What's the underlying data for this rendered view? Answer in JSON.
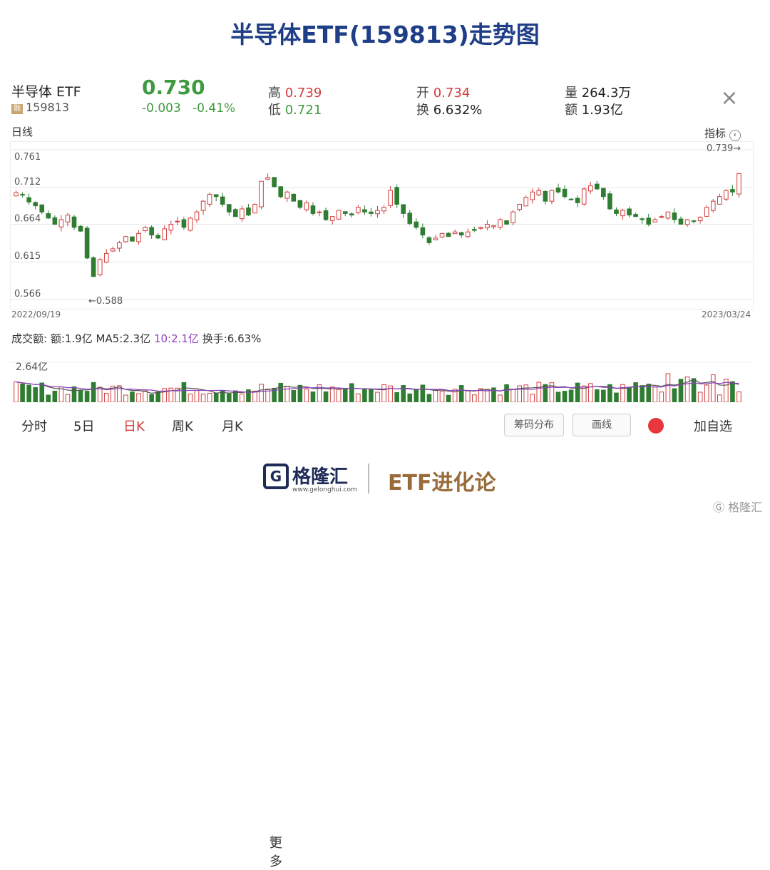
{
  "title": "半导体ETF(159813)走势图",
  "quote": {
    "name": "半导体 ETF",
    "code": "159813",
    "code_badge": "融",
    "price": "0.730",
    "change": "-0.003",
    "change_pct": "-0.41%",
    "high_label": "高",
    "high": "0.739",
    "low_label": "低",
    "low": "0.721",
    "open_label": "开",
    "open": "0.734",
    "turnover_label": "换",
    "turnover": "6.632%",
    "volume_label": "量",
    "volume": "264.3万",
    "amount_label": "额",
    "amount": "1.93亿"
  },
  "chart": {
    "period_label": "日线",
    "indicator_label": "指标",
    "start_date": "2022/09/19",
    "end_date": "2023/03/24",
    "max_annotation": "0.739→",
    "min_annotation": "←0.588"
  },
  "volume_panel": {
    "summary_prefix": "成交额: 额:1.9亿 MA5:2.3亿 ",
    "ma10": "10:2.1亿",
    "turnover": " 换手:6.63%",
    "axis_label": "2.64亿"
  },
  "tabs": [
    "分时",
    "5日",
    "日K",
    "周K",
    "月K",
    "更多"
  ],
  "active_tab": "日K",
  "buttons": {
    "chips": "筹码分布",
    "draw": "画线",
    "add": "加自选"
  },
  "footer": {
    "brand": "格隆汇",
    "brand_url": "www.gelonghui.com",
    "column": "ETF进化论",
    "watermark": "格隆汇"
  },
  "colors": {
    "up": "#d23c3c",
    "down": "#2f7d32",
    "title": "#1e3f87"
  },
  "chart_data": {
    "type": "candlestick",
    "ylim": [
      0.566,
      0.761
    ],
    "y_ticks": [
      "0.761",
      "0.712",
      "0.664",
      "0.615",
      "0.566"
    ],
    "closes": [
      0.705,
      0.702,
      0.693,
      0.688,
      0.68,
      0.672,
      0.664,
      0.67,
      0.676,
      0.66,
      0.655,
      0.62,
      0.596,
      0.618,
      0.626,
      0.632,
      0.64,
      0.648,
      0.642,
      0.652,
      0.66,
      0.65,
      0.646,
      0.658,
      0.664,
      0.668,
      0.66,
      0.672,
      0.68,
      0.694,
      0.703,
      0.7,
      0.69,
      0.68,
      0.674,
      0.684,
      0.676,
      0.69,
      0.72,
      0.725,
      0.713,
      0.7,
      0.706,
      0.694,
      0.686,
      0.692,
      0.678,
      0.68,
      0.67,
      0.674,
      0.682,
      0.678,
      0.676,
      0.686,
      0.68,
      0.678,
      0.682,
      0.686,
      0.708,
      0.69,
      0.678,
      0.665,
      0.66,
      0.65,
      0.64,
      0.646,
      0.652,
      0.648,
      0.654,
      0.65,
      0.654,
      0.656,
      0.66,
      0.664,
      0.662,
      0.67,
      0.664,
      0.68,
      0.69,
      0.699,
      0.706,
      0.708,
      0.694,
      0.708,
      0.706,
      0.7,
      0.696,
      0.692,
      0.71,
      0.714,
      0.71,
      0.7,
      0.684,
      0.678,
      0.682,
      0.676,
      0.674,
      0.67,
      0.664,
      0.67,
      0.674,
      0.68,
      0.67,
      0.664,
      0.67,
      0.668,
      0.673,
      0.686,
      0.694,
      0.7,
      0.708,
      0.706,
      0.73
    ]
  }
}
